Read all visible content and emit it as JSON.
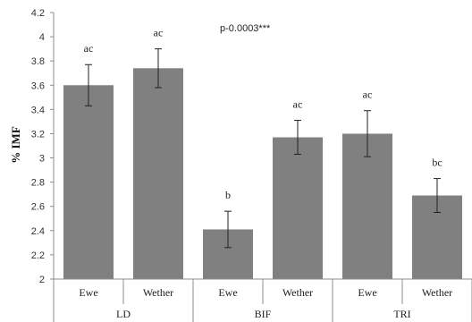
{
  "chart_data": {
    "type": "bar",
    "title": "",
    "xlabel": "",
    "ylabel": "% IMF",
    "ylim": [
      2,
      4.2
    ],
    "yticks": [
      2,
      2.2,
      2.4,
      2.6,
      2.8,
      3,
      3.2,
      3.4,
      3.6,
      3.8,
      4,
      4.2
    ],
    "ytick_labels": [
      "2",
      "2.2",
      "2.4",
      "2.6",
      "2.8",
      "3",
      "3.2",
      "3.4",
      "3.6",
      "3.8",
      "4",
      "4.2"
    ],
    "grid": false,
    "legend": "none",
    "bar_color": "#808080",
    "annotation": "p-0.0003***",
    "groups": [
      "LD",
      "BIF",
      "TRI"
    ],
    "categories": [
      "Ewe",
      "Wether",
      "Ewe",
      "Wether",
      "Ewe",
      "Wether"
    ],
    "category_group": [
      0,
      0,
      1,
      1,
      2,
      2
    ],
    "values": [
      3.6,
      3.74,
      2.41,
      3.17,
      3.2,
      2.69
    ],
    "error_low": [
      3.43,
      3.58,
      2.26,
      3.03,
      3.01,
      2.55
    ],
    "error_high": [
      3.77,
      3.9,
      2.56,
      3.31,
      3.39,
      2.83
    ],
    "data_labels": [
      "ac",
      "ac",
      "b",
      "ac",
      "ac",
      "bc"
    ]
  }
}
